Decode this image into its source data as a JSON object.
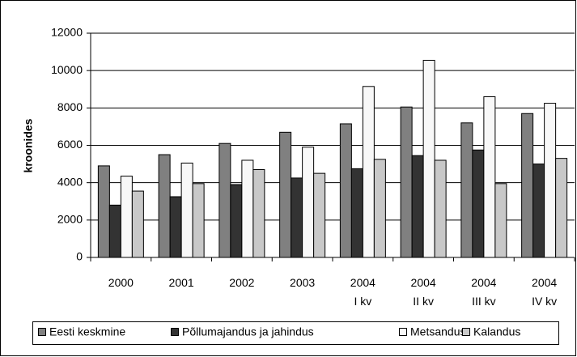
{
  "chart_data": {
    "type": "bar",
    "y_label": "kroonides",
    "categories": [
      "2000",
      "2001",
      "2002",
      "2003",
      "2004\nI kv",
      "2004\nII kv",
      "2004\nIII kv",
      "2004\nIV kv"
    ],
    "series": [
      {
        "name": "Eesti keskmine",
        "color": "#808080",
        "values": [
          4900,
          5500,
          6100,
          6700,
          7150,
          8050,
          7200,
          7700
        ]
      },
      {
        "name": "Põllumajandus ja jahindus",
        "color": "#333333",
        "values": [
          2800,
          3250,
          3900,
          4250,
          4750,
          5450,
          5750,
          5000
        ]
      },
      {
        "name": "Metsandus",
        "color": "#f8f8f8",
        "values": [
          4350,
          5050,
          5200,
          5900,
          9150,
          10550,
          8600,
          8250
        ]
      },
      {
        "name": "Kalandus",
        "color": "#c8c8c8",
        "values": [
          3550,
          3950,
          4700,
          4500,
          5250,
          5200,
          3950,
          5300
        ]
      }
    ],
    "ylim": [
      0,
      12000
    ],
    "yticks": [
      0,
      2000,
      4000,
      6000,
      8000,
      10000,
      12000
    ],
    "grid": true,
    "legend": "bottom"
  }
}
